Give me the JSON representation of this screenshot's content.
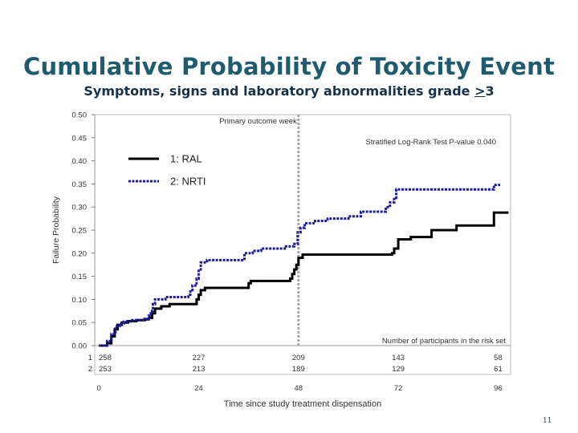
{
  "slide": {
    "title": "Cumulative Probability of Toxicity Event",
    "subtitle_prefix": "Symptoms, signs and laboratory abnormalities grade ",
    "subtitle_ge": ">",
    "subtitle_value": "3",
    "page_number": "11"
  },
  "chart_data": {
    "type": "line",
    "ylabel": "Failure Probability",
    "xlabel": "Time since study treatment dispensation",
    "ylim": [
      0,
      0.5
    ],
    "xlim": [
      -1,
      99
    ],
    "y_ticks": [
      "0.00",
      "0.05",
      "0.10",
      "0.15",
      "0.20",
      "0.25",
      "0.30",
      "0.35",
      "0.40",
      "0.45",
      "0.50"
    ],
    "x_ticks": [
      "0",
      "24",
      "48",
      "72",
      "96"
    ],
    "x_tick_values": [
      0,
      24,
      48,
      72,
      96
    ],
    "reference_line": {
      "x": 48,
      "label": "Primary outcome week"
    },
    "pvalue_text": "Stratified Log-Rank Test P-value 0.040",
    "legend": [
      {
        "label": "1: RAL",
        "style": "solid",
        "color": "#000000"
      },
      {
        "label": "2: NRTI",
        "style": "dotted",
        "color": "#1c1c9c"
      }
    ],
    "series": [
      {
        "name": "1: RAL",
        "color": "#000000",
        "style": "solid",
        "steps": [
          [
            0,
            0
          ],
          [
            2,
            0.005
          ],
          [
            3,
            0.02
          ],
          [
            3.8,
            0.035
          ],
          [
            4.5,
            0.045
          ],
          [
            5.5,
            0.05
          ],
          [
            7,
            0.053
          ],
          [
            9,
            0.055
          ],
          [
            11,
            0.057
          ],
          [
            12,
            0.06
          ],
          [
            12.8,
            0.07
          ],
          [
            13.5,
            0.08
          ],
          [
            15,
            0.085
          ],
          [
            17,
            0.09
          ],
          [
            23.5,
            0.1
          ],
          [
            24,
            0.11
          ],
          [
            24.5,
            0.12
          ],
          [
            25.5,
            0.125
          ],
          [
            36,
            0.135
          ],
          [
            36.5,
            0.14
          ],
          [
            46,
            0.145
          ],
          [
            46.5,
            0.155
          ],
          [
            47,
            0.165
          ],
          [
            47.5,
            0.175
          ],
          [
            48,
            0.19
          ],
          [
            49,
            0.197
          ],
          [
            70.5,
            0.2
          ],
          [
            71,
            0.21
          ],
          [
            72,
            0.23
          ],
          [
            75,
            0.235
          ],
          [
            80,
            0.25
          ],
          [
            86,
            0.26
          ],
          [
            95,
            0.288
          ],
          [
            98.5,
            0.288
          ]
        ]
      },
      {
        "name": "2: NRTI",
        "color": "#1c1c9c",
        "style": "dotted",
        "steps": [
          [
            0,
            0
          ],
          [
            2,
            0.01
          ],
          [
            3,
            0.025
          ],
          [
            4,
            0.042
          ],
          [
            5,
            0.048
          ],
          [
            6,
            0.052
          ],
          [
            8,
            0.055
          ],
          [
            11,
            0.058
          ],
          [
            12,
            0.065
          ],
          [
            12.5,
            0.075
          ],
          [
            13,
            0.09
          ],
          [
            13.5,
            0.1
          ],
          [
            16,
            0.105
          ],
          [
            21.5,
            0.11
          ],
          [
            22,
            0.12
          ],
          [
            22.5,
            0.13
          ],
          [
            23.5,
            0.145
          ],
          [
            24,
            0.165
          ],
          [
            24.5,
            0.18
          ],
          [
            26,
            0.185
          ],
          [
            35,
            0.2
          ],
          [
            37,
            0.205
          ],
          [
            39,
            0.21
          ],
          [
            45,
            0.215
          ],
          [
            47,
            0.22
          ],
          [
            47.8,
            0.245
          ],
          [
            48.5,
            0.255
          ],
          [
            49.5,
            0.265
          ],
          [
            52,
            0.27
          ],
          [
            55,
            0.275
          ],
          [
            60,
            0.28
          ],
          [
            63,
            0.29
          ],
          [
            69,
            0.3
          ],
          [
            70,
            0.31
          ],
          [
            71,
            0.32
          ],
          [
            71.5,
            0.338
          ],
          [
            95,
            0.348
          ],
          [
            96.5,
            0.348
          ]
        ]
      }
    ],
    "risk_table": {
      "title": "Number of participants in the risk set",
      "row_labels": [
        "1",
        "2"
      ],
      "rows": [
        [
          "258",
          "227",
          "209",
          "143",
          "58"
        ],
        [
          "253",
          "213",
          "189",
          "129",
          "61"
        ]
      ]
    }
  }
}
